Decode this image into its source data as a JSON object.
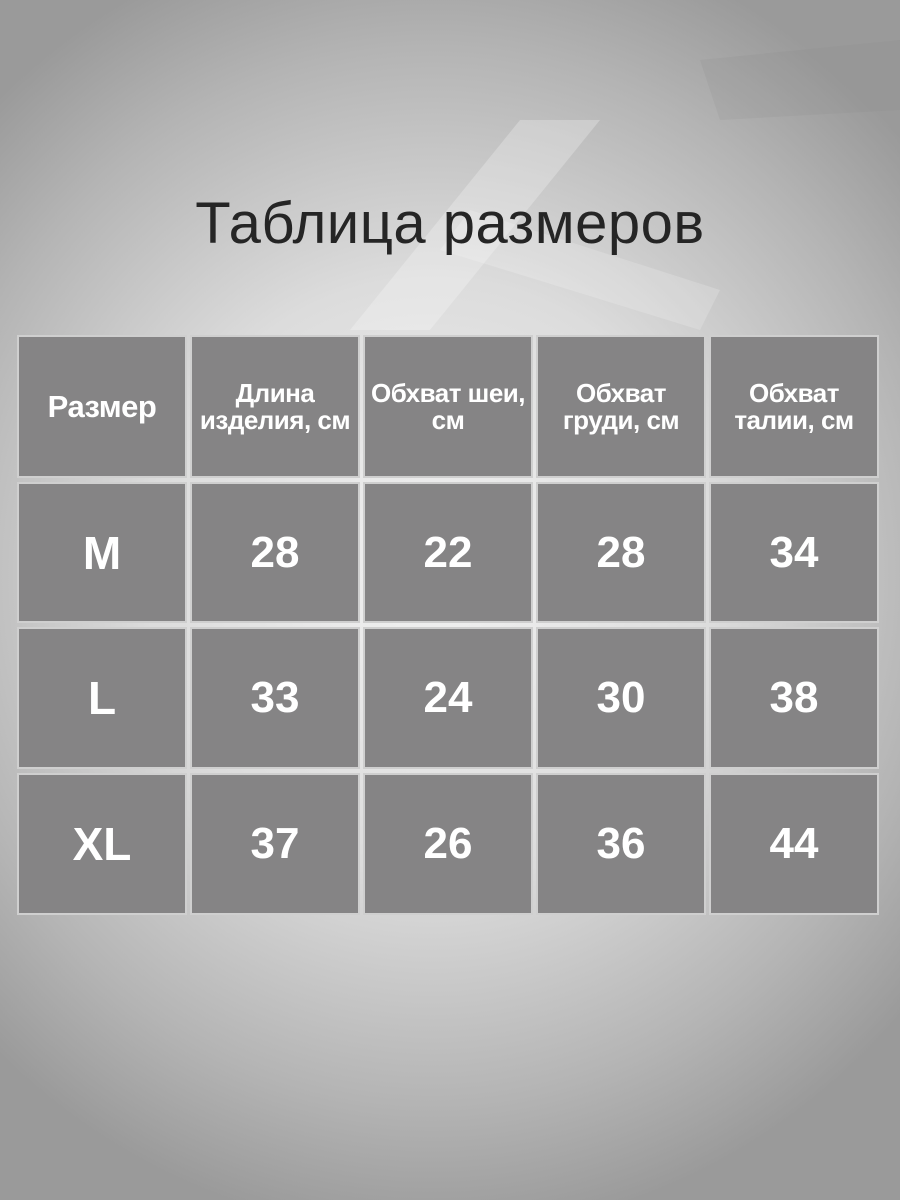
{
  "title": "Таблица размеров",
  "colors": {
    "cell": "#858485",
    "text": "#ffffff",
    "title": "#252525"
  },
  "table": {
    "headers": [
      "Размер",
      "Длина изделия, см",
      "Обхват шеи, см",
      "Обхват груди, см",
      "Обхват талии, см"
    ],
    "rows": [
      [
        "M",
        "28",
        "22",
        "28",
        "34"
      ],
      [
        "L",
        "33",
        "24",
        "30",
        "38"
      ],
      [
        "XL",
        "37",
        "26",
        "36",
        "44"
      ]
    ]
  }
}
